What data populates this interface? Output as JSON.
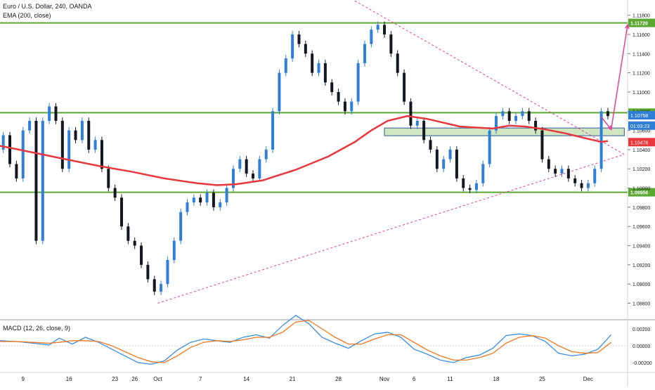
{
  "header": {
    "title": "Euro / U.S. Dollar, 240, OANDA",
    "ema_label": "EMA (200, close)",
    "macd_label": "MACD (12, 26, close, 9)"
  },
  "colors": {
    "candle_up": "#2f7ed8",
    "candle_down": "#131722",
    "ema": "#e8383d",
    "level_line": "#5aa832",
    "trendline": "#e0409a",
    "zone_fill": "#a9d18e",
    "macd_line": "#3a8fe0",
    "signal_line": "#f07820",
    "axis_text": "#131722",
    "grid": "#f0f3fa"
  },
  "chart_data": [
    {
      "type": "candlestick",
      "title": "Euro / U.S. Dollar, 240, OANDA",
      "indicator": "EMA (200, close)",
      "ylim": [
        1.0865,
        1.119
      ],
      "price_ticks": [
        "1.11800",
        "1.11600",
        "1.11400",
        "1.11200",
        "1.11000",
        "1.10800",
        "1.10600",
        "1.10400",
        "1.10200",
        "1.10000",
        "1.09800",
        "1.09600",
        "1.09400",
        "1.09200",
        "1.09000",
        "1.08800"
      ],
      "x_ticks": [
        "9",
        "16",
        "23",
        "26",
        "Oct",
        "7",
        "14",
        "21",
        "28",
        "Nov",
        "6",
        "11",
        "18",
        "25",
        "Dec"
      ],
      "x_tick_positions": [
        7,
        21,
        35,
        41,
        48,
        61,
        75,
        89,
        103,
        117,
        126,
        137,
        151,
        165,
        179
      ],
      "x_range": [
        0,
        191
      ],
      "levels": [
        {
          "label": "1.11720",
          "value": 1.1172
        },
        {
          "label": "1.10785",
          "value": 1.10785
        },
        {
          "label": "1.09956",
          "value": 1.09956
        }
      ],
      "price_labels": [
        {
          "label": "1.10758",
          "value": 1.10758,
          "color": "#2f7ed8"
        },
        {
          "label": "01:03:23",
          "value": 1.1065,
          "color": "#2f7ed8"
        },
        {
          "label": "1.10478",
          "value": 1.10478,
          "color": "#e8383d"
        }
      ],
      "zone": {
        "x_start": 117,
        "x_end": 190,
        "y_low": 1.10545,
        "y_high": 1.10625
      },
      "trendlines": [
        {
          "x1": 48,
          "y1": 1.088,
          "x2": 190,
          "y2": 1.1035
        },
        {
          "x1": 108,
          "y1": 1.1195,
          "x2": 190,
          "y2": 1.1035
        }
      ],
      "arrows": [
        {
          "x1": 183,
          "y1": 1.1074,
          "x2": 186,
          "y2": 1.1061
        },
        {
          "x1": 186,
          "y1": 1.1061,
          "x2": 191,
          "y2": 1.117
        }
      ],
      "ema_series": [
        [
          0,
          1.1044
        ],
        [
          10,
          1.1037
        ],
        [
          20,
          1.103
        ],
        [
          30,
          1.1023
        ],
        [
          40,
          1.1017
        ],
        [
          50,
          1.101
        ],
        [
          60,
          1.1005
        ],
        [
          66,
          1.1003
        ],
        [
          72,
          1.1004
        ],
        [
          80,
          1.1008
        ],
        [
          90,
          1.1019
        ],
        [
          100,
          1.1033
        ],
        [
          108,
          1.1048
        ],
        [
          113,
          1.106
        ],
        [
          118,
          1.107
        ],
        [
          124,
          1.1075
        ],
        [
          130,
          1.1072
        ],
        [
          140,
          1.1064
        ],
        [
          150,
          1.1062
        ],
        [
          155,
          1.1065
        ],
        [
          160,
          1.1064
        ],
        [
          166,
          1.1061
        ],
        [
          172,
          1.1057
        ],
        [
          178,
          1.1052
        ],
        [
          183,
          1.1048
        ],
        [
          185,
          1.1049
        ]
      ],
      "close_series": [
        [
          0,
          1.104
        ],
        [
          2,
          1.1055
        ],
        [
          4,
          1.1025
        ],
        [
          6,
          1.101
        ],
        [
          8,
          1.106
        ],
        [
          10,
          1.107
        ],
        [
          12,
          1.0945
        ],
        [
          14,
          1.107
        ],
        [
          16,
          1.1085
        ],
        [
          18,
          1.107
        ],
        [
          20,
          1.102
        ],
        [
          22,
          1.106
        ],
        [
          24,
          1.105
        ],
        [
          26,
          1.107
        ],
        [
          28,
          1.104
        ],
        [
          30,
          1.105
        ],
        [
          32,
          1.102
        ],
        [
          34,
          1.1
        ],
        [
          36,
          1.099
        ],
        [
          38,
          1.096
        ],
        [
          40,
          1.0945
        ],
        [
          42,
          1.094
        ],
        [
          44,
          1.092
        ],
        [
          46,
          1.0905
        ],
        [
          48,
          1.0892
        ],
        [
          50,
          1.09
        ],
        [
          52,
          1.0925
        ],
        [
          54,
          1.0945
        ],
        [
          56,
          1.0975
        ],
        [
          58,
          1.0985
        ],
        [
          60,
          1.099
        ],
        [
          62,
          1.0985
        ],
        [
          64,
          1.0995
        ],
        [
          66,
          1.098
        ],
        [
          68,
          1.0985
        ],
        [
          70,
          1.1
        ],
        [
          72,
          1.102
        ],
        [
          74,
          1.103
        ],
        [
          76,
          1.1015
        ],
        [
          78,
          1.101
        ],
        [
          80,
          1.103
        ],
        [
          82,
          1.104
        ],
        [
          84,
          1.108
        ],
        [
          86,
          1.112
        ],
        [
          88,
          1.1135
        ],
        [
          90,
          1.116
        ],
        [
          92,
          1.115
        ],
        [
          94,
          1.114
        ],
        [
          96,
          1.112
        ],
        [
          98,
          1.113
        ],
        [
          100,
          1.111
        ],
        [
          102,
          1.11
        ],
        [
          104,
          1.109
        ],
        [
          106,
          1.108
        ],
        [
          108,
          1.109
        ],
        [
          110,
          1.113
        ],
        [
          112,
          1.115
        ],
        [
          114,
          1.1165
        ],
        [
          116,
          1.117
        ],
        [
          118,
          1.116
        ],
        [
          120,
          1.114
        ],
        [
          122,
          1.112
        ],
        [
          124,
          1.109
        ],
        [
          126,
          1.1065
        ],
        [
          128,
          1.107
        ],
        [
          130,
          1.105
        ],
        [
          132,
          1.104
        ],
        [
          134,
          1.102
        ],
        [
          136,
          1.103
        ],
        [
          138,
          1.104
        ],
        [
          140,
          1.101
        ],
        [
          142,
          1.1
        ],
        [
          144,
          1.0998
        ],
        [
          146,
          1.1005
        ],
        [
          148,
          1.1025
        ],
        [
          150,
          1.106
        ],
        [
          152,
          1.1075
        ],
        [
          154,
          1.108
        ],
        [
          156,
          1.107
        ],
        [
          158,
          1.1075
        ],
        [
          160,
          1.108
        ],
        [
          162,
          1.107
        ],
        [
          164,
          1.106
        ],
        [
          166,
          1.103
        ],
        [
          168,
          1.102
        ],
        [
          170,
          1.1015
        ],
        [
          172,
          1.102
        ],
        [
          174,
          1.101
        ],
        [
          176,
          1.1005
        ],
        [
          178,
          1.1
        ],
        [
          180,
          1.1005
        ],
        [
          182,
          1.102
        ],
        [
          184,
          1.108
        ],
        [
          186,
          1.1075
        ]
      ]
    },
    {
      "type": "line",
      "title": "MACD (12, 26, close, 9)",
      "ylim": [
        -0.003,
        0.003
      ],
      "y_ticks": [
        "0.00200",
        "0.00000",
        "-0.00200"
      ],
      "series": [
        {
          "name": "",
          "color": "#3a8fe0",
          "values": [
            [
              0,
              0.0006
            ],
            [
              5,
              0.0005
            ],
            [
              10,
              0.0003
            ],
            [
              15,
              0.0001
            ],
            [
              18,
              0.0009
            ],
            [
              22,
              0.0002
            ],
            [
              26,
              0.001
            ],
            [
              30,
              0.0004
            ],
            [
              34,
              -0.0004
            ],
            [
              38,
              -0.0012
            ],
            [
              42,
              -0.002
            ],
            [
              46,
              -0.0022
            ],
            [
              50,
              -0.0018
            ],
            [
              54,
              -0.0005
            ],
            [
              58,
              0.0004
            ],
            [
              62,
              0.0008
            ],
            [
              66,
              0.0006
            ],
            [
              70,
              0.0004
            ],
            [
              74,
              0.001
            ],
            [
              78,
              0.0013
            ],
            [
              82,
              0.0009
            ],
            [
              86,
              0.0024
            ],
            [
              90,
              0.0036
            ],
            [
              94,
              0.0026
            ],
            [
              98,
              0.001
            ],
            [
              102,
              0.0003
            ],
            [
              106,
              -0.0003
            ],
            [
              110,
              0.0006
            ],
            [
              114,
              0.0014
            ],
            [
              118,
              0.0016
            ],
            [
              122,
              0.001
            ],
            [
              126,
              -0.0004
            ],
            [
              130,
              -0.001
            ],
            [
              134,
              -0.0017
            ],
            [
              138,
              -0.002
            ],
            [
              142,
              -0.0014
            ],
            [
              146,
              -0.0011
            ],
            [
              150,
              -0.0003
            ],
            [
              154,
              0.0012
            ],
            [
              158,
              0.0014
            ],
            [
              162,
              0.0012
            ],
            [
              166,
              0.0005
            ],
            [
              170,
              -0.0009
            ],
            [
              174,
              -0.0012
            ],
            [
              178,
              -0.001
            ],
            [
              182,
              -0.0004
            ],
            [
              186,
              0.0013
            ]
          ]
        },
        {
          "name": "",
          "color": "#f07820",
          "values": [
            [
              0,
              0.0005
            ],
            [
              5,
              0.0005
            ],
            [
              10,
              0.0004
            ],
            [
              15,
              0.0003
            ],
            [
              18,
              0.0004
            ],
            [
              22,
              0.0006
            ],
            [
              26,
              0.0006
            ],
            [
              30,
              0.0005
            ],
            [
              34,
              0.0
            ],
            [
              38,
              -0.0007
            ],
            [
              42,
              -0.0014
            ],
            [
              46,
              -0.0019
            ],
            [
              50,
              -0.002
            ],
            [
              54,
              -0.0012
            ],
            [
              58,
              -0.0002
            ],
            [
              62,
              0.0004
            ],
            [
              66,
              0.0006
            ],
            [
              70,
              0.0005
            ],
            [
              74,
              0.0007
            ],
            [
              78,
              0.001
            ],
            [
              82,
              0.001
            ],
            [
              86,
              0.0016
            ],
            [
              90,
              0.0028
            ],
            [
              94,
              0.003
            ],
            [
              98,
              0.002
            ],
            [
              102,
              0.001
            ],
            [
              106,
              0.0002
            ],
            [
              110,
              0.0002
            ],
            [
              114,
              0.0008
            ],
            [
              118,
              0.0013
            ],
            [
              122,
              0.0013
            ],
            [
              126,
              0.0004
            ],
            [
              130,
              -0.0005
            ],
            [
              134,
              -0.0012
            ],
            [
              138,
              -0.0017
            ],
            [
              142,
              -0.0017
            ],
            [
              146,
              -0.0014
            ],
            [
              150,
              -0.0009
            ],
            [
              154,
              0.0003
            ],
            [
              158,
              0.001
            ],
            [
              162,
              0.0012
            ],
            [
              166,
              0.0009
            ],
            [
              170,
              0.0
            ],
            [
              174,
              -0.0007
            ],
            [
              178,
              -0.0009
            ],
            [
              182,
              -0.0008
            ],
            [
              186,
              0.0004
            ]
          ]
        }
      ]
    }
  ]
}
